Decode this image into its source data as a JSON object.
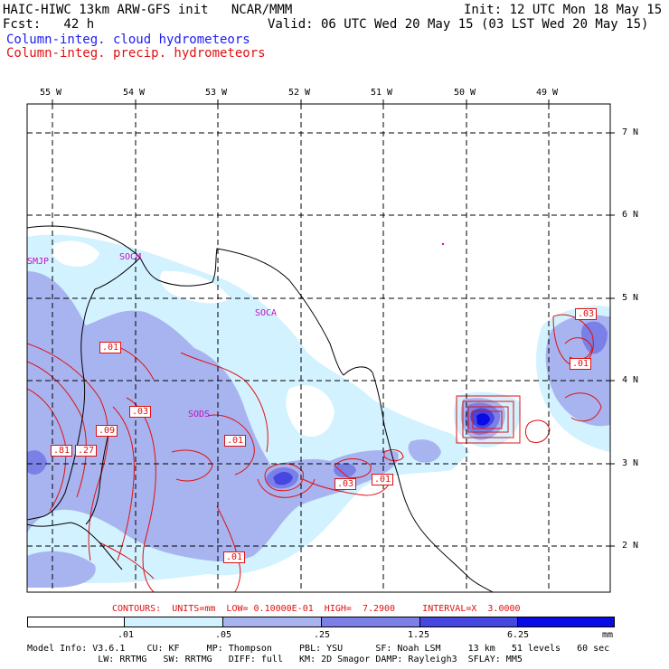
{
  "header": {
    "title_left": "HAIC-HIWC 13km ARW-GFS init   NCAR/MMM",
    "init": "Init: 12 UTC Mon 18 May 15",
    "fcst": "Fcst:   42 h",
    "valid": "Valid: 06 UTC Wed 20 May 15 (03 LST Wed 20 May 15)",
    "field_cloud": "Column-integ. cloud hydrometeors",
    "field_precip": "Column-integ. precip. hydrometeors"
  },
  "axes": {
    "lon_labels": [
      "55 W",
      "54 W",
      "53 W",
      "52 W",
      "51 W",
      "50 W",
      "49 W"
    ],
    "lat_labels": [
      "7 N",
      "6 N",
      "5 N",
      "4 N",
      "3 N",
      "2 N"
    ]
  },
  "stations": [
    "SMJP",
    "SOCM",
    "SOCA",
    "SODS"
  ],
  "contour_labels": [
    ".01",
    ".03",
    ".09",
    ".81",
    ".27",
    ".01",
    ".03",
    ".01",
    ".01",
    ".03",
    ".01"
  ],
  "contour_info": "CONTOURS:  UNITS=mm  LOW= 0.10000E-01  HIGH=  7.2900     INTERVAL=X  3.0000",
  "colorbar": {
    "levels": [
      ".01",
      ".05",
      ".25",
      "1.25",
      "6.25"
    ],
    "unit": "mm",
    "colors": [
      "#ffffff",
      "#d2f2ff",
      "#a8b4f0",
      "#7a80e6",
      "#4646e0",
      "#0a0ae6"
    ]
  },
  "model_info": {
    "line1": "Model Info: V3.6.1    CU: KF     MP: Thompson     PBL: YSU      SF: Noah LSM     13 km   51 levels   60 sec",
    "line2": "             LW: RRTMG   SW: RRTMG   DIFF: full   KM: 2D Smagor DAMP: Rayleigh3  SFLAY: MM5"
  }
}
